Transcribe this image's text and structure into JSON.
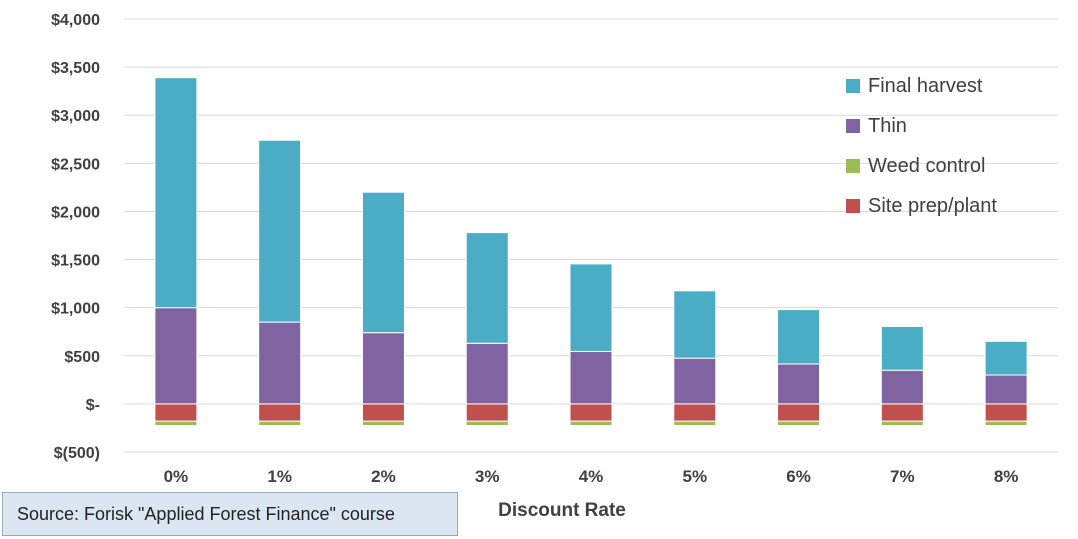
{
  "chart_data": {
    "type": "bar",
    "stacked": true,
    "categories": [
      "0%",
      "1%",
      "2%",
      "3%",
      "4%",
      "5%",
      "6%",
      "7%",
      "8%"
    ],
    "series": [
      {
        "name": "Site prep/plant",
        "color": "#c0504d",
        "values": [
          -180,
          -180,
          -180,
          -180,
          -180,
          -180,
          -180,
          -180,
          -180
        ]
      },
      {
        "name": "Weed control",
        "color": "#9bbb59",
        "values": [
          -45,
          -45,
          -45,
          -45,
          -45,
          -45,
          -45,
          -45,
          -45
        ]
      },
      {
        "name": "Thin",
        "color": "#8064a2",
        "values": [
          1000,
          850,
          740,
          630,
          545,
          475,
          415,
          350,
          300
        ]
      },
      {
        "name": "Final harvest",
        "color": "#4bacc6",
        "values": [
          2390,
          1890,
          1460,
          1150,
          910,
          700,
          565,
          455,
          350
        ]
      }
    ],
    "legend_order": [
      "Final harvest",
      "Thin",
      "Weed control",
      "Site prep/plant"
    ],
    "y_ticks": [
      "$(500)",
      "$-",
      "$500",
      "$1,000",
      "$1,500",
      "$2,000",
      "$2,500",
      "$3,000",
      "$3,500",
      "$4,000"
    ],
    "y_tick_values": [
      -500,
      0,
      500,
      1000,
      1500,
      2000,
      2500,
      3000,
      3500,
      4000
    ],
    "ylim": [
      -500,
      4000
    ],
    "xlabel": "Discount Rate",
    "ylabel": "",
    "title": "",
    "grid": true,
    "legend_position": "top-right"
  },
  "source_note": "Source: Forisk \"Applied Forest Finance\" course"
}
